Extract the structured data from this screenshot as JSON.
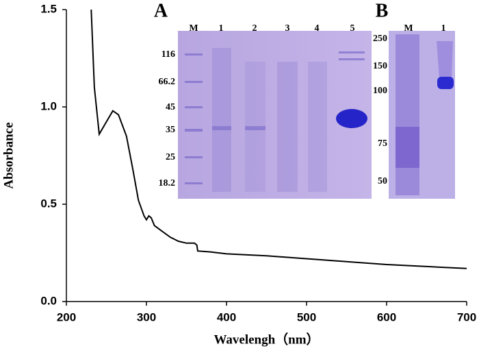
{
  "chart_data": {
    "type": "line",
    "xlabel": "Wavelengh（nm）",
    "ylabel": "Absorbance",
    "x": [
      231,
      235,
      241,
      248,
      258,
      265,
      275,
      283,
      290,
      297,
      300,
      303,
      306,
      310,
      320,
      330,
      340,
      350,
      360,
      363,
      364,
      380,
      400,
      450,
      500,
      550,
      600,
      650,
      700
    ],
    "values": [
      1.5,
      1.1,
      0.86,
      0.91,
      0.98,
      0.96,
      0.85,
      0.68,
      0.52,
      0.44,
      0.42,
      0.44,
      0.43,
      0.39,
      0.36,
      0.33,
      0.31,
      0.3,
      0.3,
      0.29,
      0.26,
      0.255,
      0.245,
      0.235,
      0.22,
      0.205,
      0.19,
      0.18,
      0.17
    ],
    "color": "#000000",
    "xlim": [
      200,
      700
    ],
    "xticks": [
      200,
      300,
      400,
      500,
      600,
      700
    ],
    "ylim": [
      0,
      1.5
    ],
    "yticks": [
      {
        "value": 0,
        "label": "0.0"
      },
      0.5,
      {
        "value": 1,
        "label": "1.0"
      },
      {
        "value": 1.5,
        "label": "1.5"
      }
    ],
    "panels": [
      {
        "label": "A",
        "lanes": [
          "M",
          "1",
          "2",
          "3",
          "4",
          "5"
        ],
        "markers": [
          "116",
          "66.2",
          "45",
          "35",
          "25",
          "18.2"
        ]
      },
      {
        "label": "B",
        "lanes": [
          "M",
          "1"
        ],
        "markers": [
          "250",
          "150",
          "100",
          "75",
          "50"
        ]
      }
    ]
  }
}
